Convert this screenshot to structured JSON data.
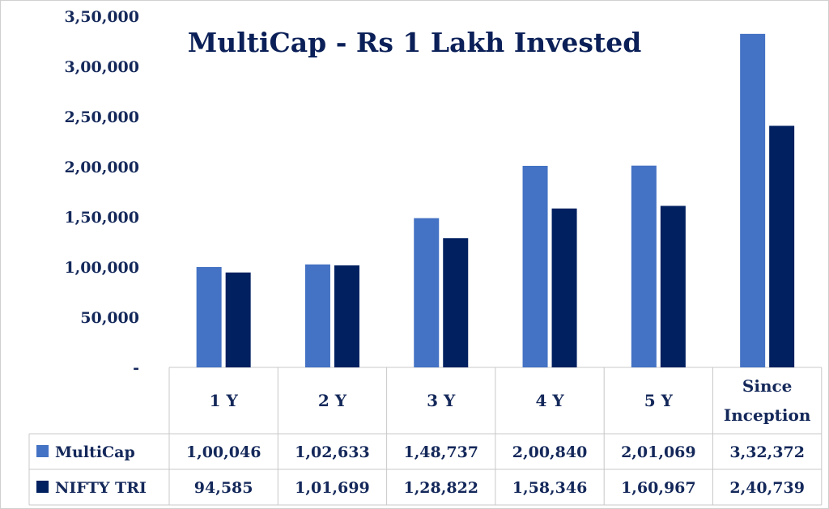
{
  "chart_data": {
    "type": "bar",
    "title": "MultiCap - Rs 1 Lakh Invested",
    "categories": [
      "1 Y",
      "2 Y",
      "3 Y",
      "4 Y",
      "5 Y",
      "Since Inception"
    ],
    "series": [
      {
        "name": "MultiCap",
        "color": "#4472c4",
        "values": [
          100046,
          102633,
          148737,
          200840,
          201069,
          332372
        ],
        "labels": [
          "1,00,046",
          "1,02,633",
          "1,48,737",
          "2,00,840",
          "2,01,069",
          "3,32,372"
        ]
      },
      {
        "name": "NIFTY TRI",
        "color": "#002060",
        "values": [
          94585,
          101699,
          128822,
          158346,
          160967,
          240739
        ],
        "labels": [
          "94,585",
          "1,01,699",
          "1,28,822",
          "1,58,346",
          "1,60,967",
          "2,40,739"
        ]
      }
    ],
    "ylim": [
      0,
      350000
    ],
    "yticks": [
      {
        "value": 0,
        "label": "-"
      },
      {
        "value": 50000,
        "label": "50,000"
      },
      {
        "value": 100000,
        "label": "1,00,000"
      },
      {
        "value": 150000,
        "label": "1,50,000"
      },
      {
        "value": 200000,
        "label": "2,00,000"
      },
      {
        "value": 250000,
        "label": "2,50,000"
      },
      {
        "value": 300000,
        "label": "3,00,000"
      },
      {
        "value": 350000,
        "label": "3,50,000"
      }
    ],
    "data_table": true,
    "legend_placement": "in data table"
  }
}
